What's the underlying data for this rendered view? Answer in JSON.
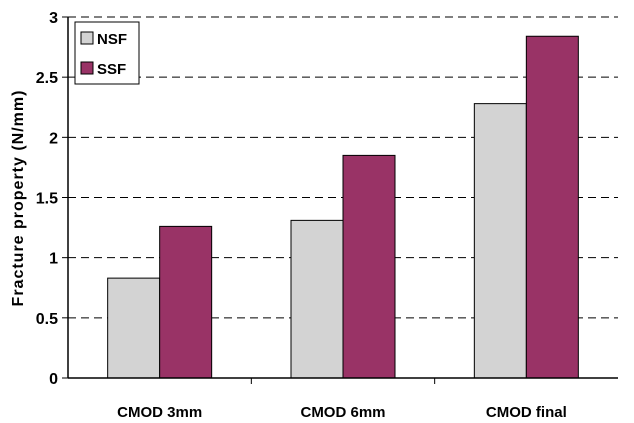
{
  "chart_data": {
    "type": "bar",
    "title": "",
    "xlabel": "",
    "ylabel": "Fracture property (N/mm)",
    "categories": [
      "CMOD 3mm",
      "CMOD 6mm",
      "CMOD final"
    ],
    "series": [
      {
        "name": "NSF",
        "color": "#d3d3d3",
        "values": [
          0.83,
          1.31,
          2.28
        ]
      },
      {
        "name": "SSF",
        "color": "#993366",
        "values": [
          1.26,
          1.85,
          2.84
        ]
      }
    ],
    "ylim": [
      0,
      3
    ],
    "yticks": [
      0,
      0.5,
      1,
      1.5,
      2,
      2.5,
      3
    ],
    "ytick_labels": [
      "0",
      "0.5",
      "1",
      "1.5",
      "2",
      "2.5",
      "3"
    ],
    "grid": "horizontal dashed",
    "legend_position": "top-left"
  }
}
